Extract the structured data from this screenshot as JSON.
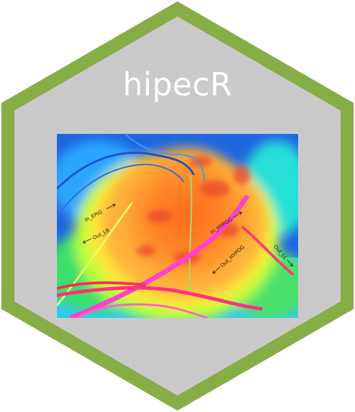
{
  "logo": {
    "title": "hipecR",
    "colors": {
      "border": "#87ad47",
      "fill": "#cacaca",
      "title": "#ffffff"
    }
  },
  "thermal_image": {
    "annotations": {
      "in_epig": "In_EPIG",
      "out_lr": "Out_LR",
      "in_hypog": "In_HYPOG",
      "out_hypog": "Out_HYPOG",
      "out_ll": "Out_LL"
    }
  }
}
